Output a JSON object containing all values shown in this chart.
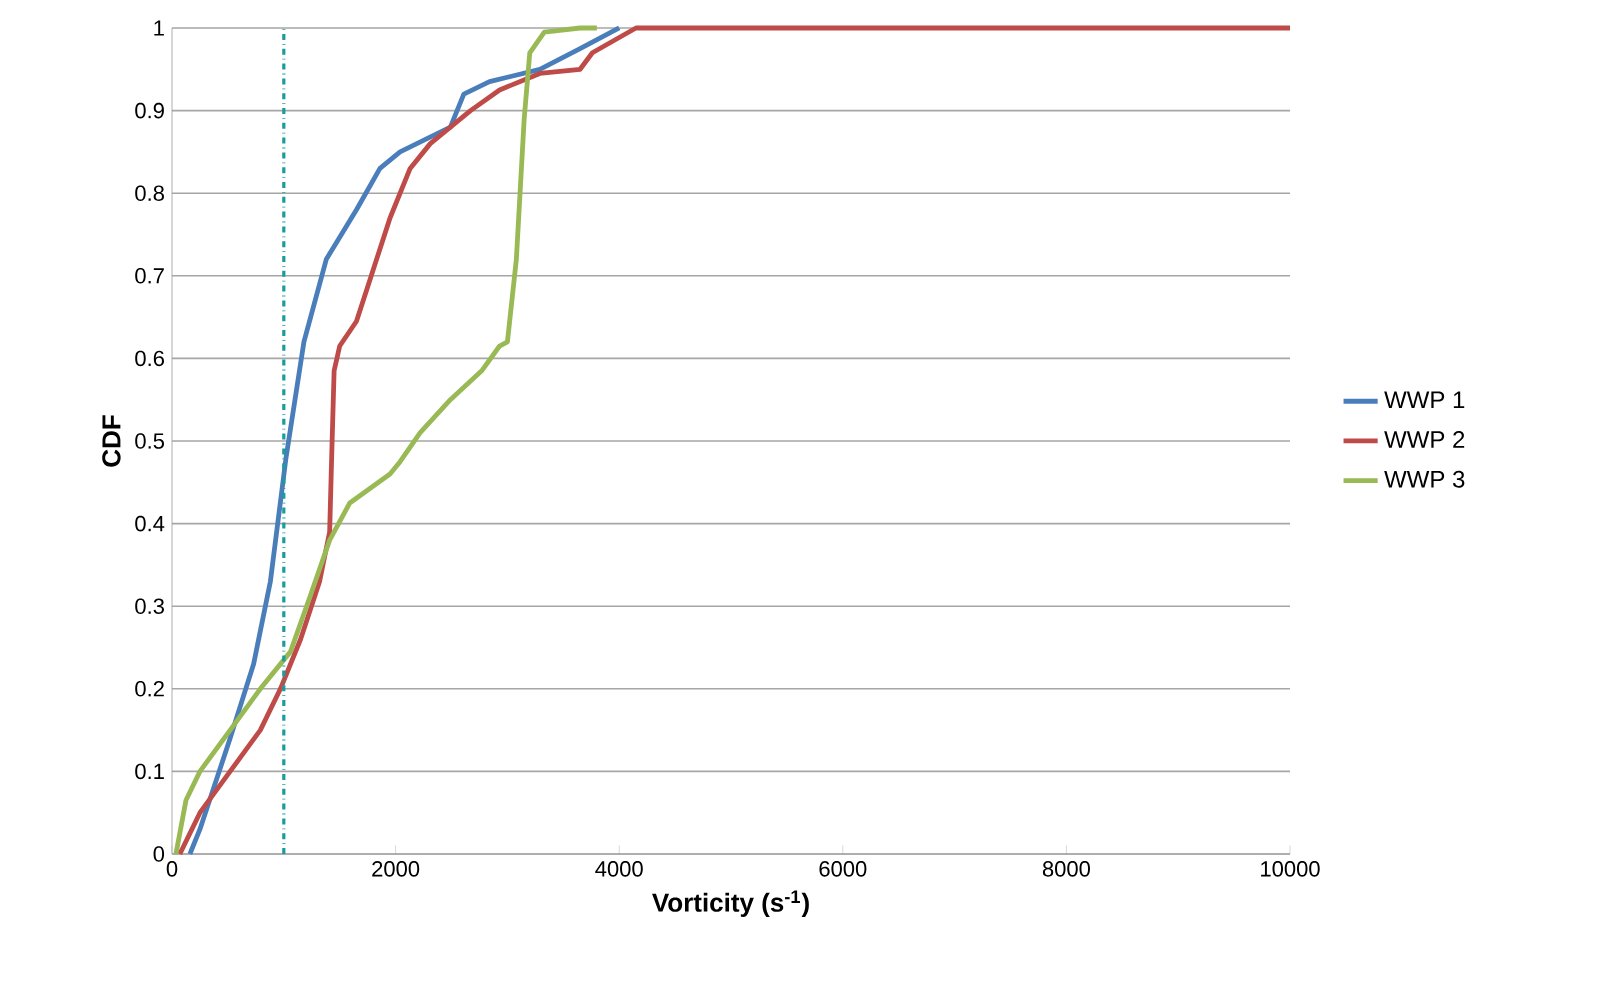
{
  "chart_data": {
    "type": "line",
    "xlabel": "Vorticity (s$^{-1}$)",
    "ylabel": "CDF",
    "xlim": [
      0,
      10000
    ],
    "xticks": [
      0,
      2000,
      4000,
      6000,
      8000,
      10000
    ],
    "ylim": [
      0,
      1
    ],
    "yticks": [
      0,
      0.1,
      0.2,
      0.3,
      0.4,
      0.5,
      0.6,
      0.7,
      0.8,
      0.9,
      1
    ],
    "grid": "y",
    "legend": "right",
    "marker": "none",
    "line_style": "solid",
    "ref_lines": [
      {
        "axis": "x",
        "value": 1000,
        "color": "#1a9c9c",
        "line_style": "dashdot"
      }
    ],
    "series": [
      {
        "name": "WWP 1",
        "color": "#4a7ebb",
        "x": [
          160,
          250,
          520,
          730,
          880,
          1020,
          1180,
          1380,
          1650,
          1860,
          2040,
          2490,
          2610,
          2840,
          3290,
          3650,
          4000
        ],
        "values": [
          0,
          0.03,
          0.14,
          0.23,
          0.33,
          0.48,
          0.62,
          0.72,
          0.78,
          0.83,
          0.85,
          0.88,
          0.92,
          0.935,
          0.95,
          0.975,
          1.0
        ]
      },
      {
        "name": "WWP 2",
        "color": "#be4b48",
        "x": [
          70,
          250,
          520,
          790,
          970,
          1150,
          1320,
          1410,
          1430,
          1450,
          1500,
          1650,
          1770,
          1950,
          2130,
          2310,
          2670,
          2930,
          3290,
          3650,
          3760,
          4150,
          10000
        ],
        "values": [
          0,
          0.05,
          0.1,
          0.15,
          0.2,
          0.26,
          0.33,
          0.39,
          0.49,
          0.585,
          0.615,
          0.645,
          0.695,
          0.77,
          0.83,
          0.86,
          0.9,
          0.925,
          0.945,
          0.95,
          0.97,
          1.0,
          1.0
        ]
      },
      {
        "name": "WWP 3",
        "color": "#98b954",
        "x": [
          35,
          125,
          250,
          520,
          790,
          1060,
          1230,
          1410,
          1590,
          1950,
          2040,
          2220,
          2490,
          2770,
          2930,
          3000,
          3080,
          3150,
          3200,
          3330,
          3650,
          3800
        ],
        "values": [
          0,
          0.065,
          0.1,
          0.15,
          0.2,
          0.245,
          0.31,
          0.38,
          0.425,
          0.46,
          0.475,
          0.51,
          0.55,
          0.585,
          0.615,
          0.62,
          0.72,
          0.89,
          0.97,
          0.995,
          1.0,
          1.0
        ]
      }
    ]
  }
}
